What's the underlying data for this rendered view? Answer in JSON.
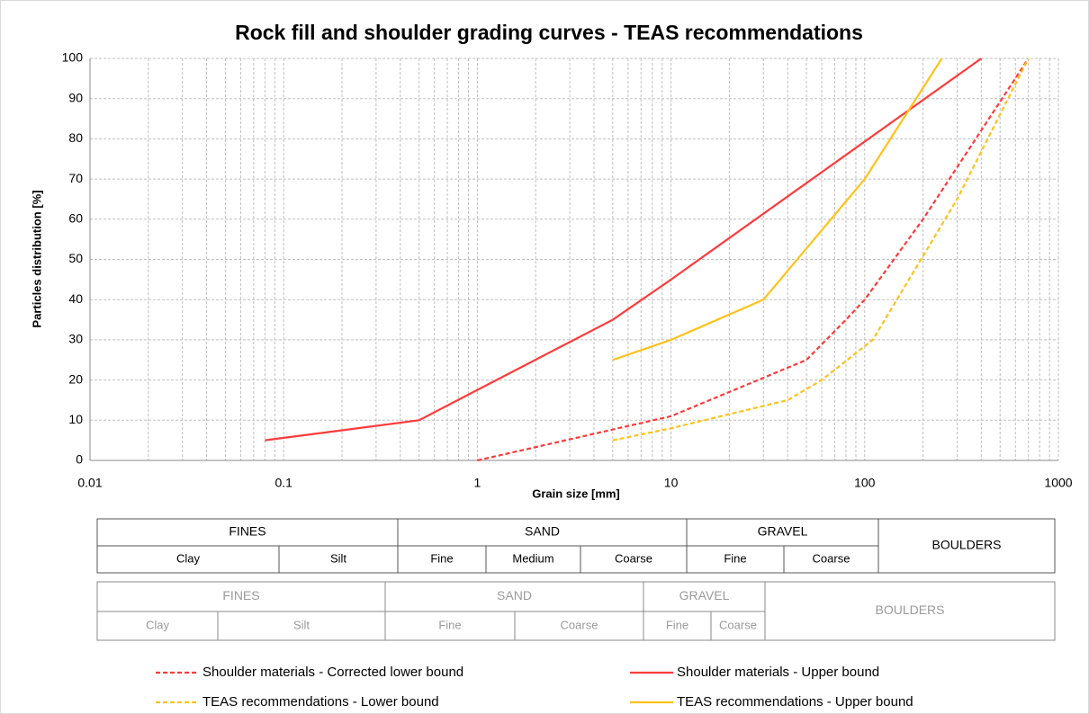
{
  "chart_data": {
    "type": "line",
    "title": "Rock fill and shoulder grading curves - TEAS recommendations",
    "xlabel": "Grain size [mm]",
    "ylabel": "Particles distribution [%]",
    "xscale": "log",
    "xlim": [
      0.01,
      1000
    ],
    "xticks": [
      0.01,
      0.1,
      1,
      10,
      100,
      1000
    ],
    "ylim": [
      0,
      100
    ],
    "yticks": [
      0,
      10,
      20,
      30,
      40,
      50,
      60,
      70,
      80,
      90,
      100
    ],
    "grid": true,
    "series": [
      {
        "name": "Shoulder materials - Corrected lower bound",
        "color": "#ff3b3b",
        "dash": true,
        "x": [
          1,
          10,
          50,
          80,
          100,
          200,
          700
        ],
        "values": [
          0,
          11,
          25,
          35,
          40,
          60,
          100
        ]
      },
      {
        "name": "Shoulder materials - Upper bound",
        "color": "#ff3b3b",
        "dash": false,
        "x": [
          0.08,
          0.5,
          5,
          10,
          400
        ],
        "values": [
          5,
          10,
          35,
          45,
          100
        ]
      },
      {
        "name": "TEAS recommendations - Lower bound",
        "color": "#ffc21a",
        "dash": true,
        "x": [
          5,
          10,
          40,
          60,
          110,
          300,
          700
        ],
        "values": [
          5,
          8,
          15,
          20,
          30,
          65,
          100
        ]
      },
      {
        "name": "TEAS recommendations - Upper bound",
        "color": "#ffc21a",
        "dash": false,
        "x": [
          5,
          10,
          30,
          100,
          250
        ],
        "values": [
          25,
          30,
          40,
          70,
          100
        ]
      }
    ]
  },
  "classification_tables": [
    {
      "groups": [
        "FINES",
        "SAND",
        "GRAVEL",
        "BOULDERS"
      ],
      "subgroups": [
        "Clay",
        "Silt",
        "Fine",
        "Medium",
        "Coarse",
        "Fine",
        "Coarse"
      ]
    },
    {
      "groups": [
        "FINES",
        "SAND",
        "GRAVEL",
        "BOULDERS"
      ],
      "subgroups": [
        "Clay",
        "Silt",
        "Fine",
        "Coarse",
        "Fine",
        "Coarse"
      ]
    }
  ]
}
